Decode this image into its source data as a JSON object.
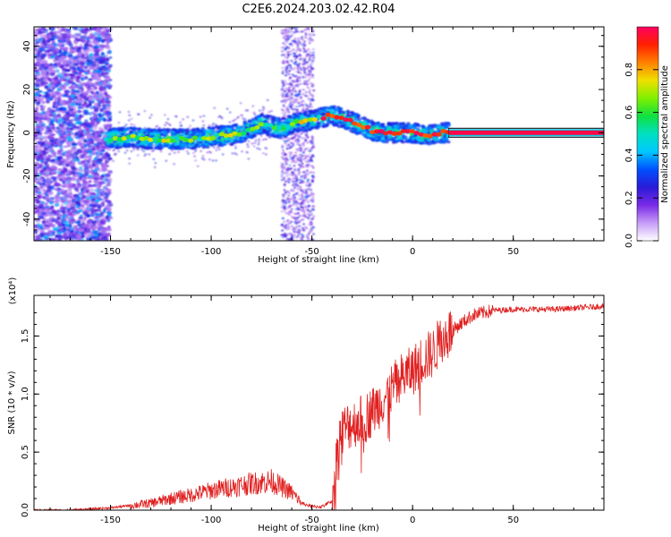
{
  "title": "C2E6.2024.203.02.42.R04",
  "chart_data": [
    {
      "type": "heatmap",
      "xlabel": "Height of straight line (km)",
      "ylabel": "Frequency (Hz)",
      "xlim": [
        -188,
        95
      ],
      "ylim": [
        -50,
        49
      ],
      "x_ticks": [
        -150,
        -100,
        -50,
        0,
        50
      ],
      "y_ticks": [
        -40,
        -20,
        0,
        20,
        40
      ],
      "ridge": {
        "x": [
          -188,
          -160,
          -152,
          -140,
          -130,
          -120,
          -110,
          -100,
          -90,
          -85,
          -80,
          -75,
          -70,
          -65,
          -60,
          -55,
          -50,
          -45,
          -40,
          -35,
          -30,
          -25,
          -20,
          -15,
          -10,
          -5,
          0,
          5,
          10,
          15,
          20,
          40,
          60,
          80,
          95
        ],
        "frequency_hz": [
          0,
          0,
          -3,
          -2,
          -3,
          -3,
          -3,
          -2,
          -1,
          0,
          2,
          4,
          3,
          2,
          4,
          5,
          6,
          7,
          8,
          7,
          5,
          3,
          1,
          0,
          0,
          0,
          0,
          -1,
          -1,
          0,
          0,
          0,
          0,
          0,
          0
        ]
      },
      "colorbar": {
        "label": "Normalized spectral amplitude",
        "range": [
          0.0,
          1.0
        ],
        "ticks": [
          "0.0",
          "0.2",
          "0.4",
          "0.6",
          "0.8"
        ],
        "colors": [
          "#ffffff",
          "#c79cf8",
          "#7a2ae6",
          "#2a1ad6",
          "#0050ff",
          "#00c8ff",
          "#00e0c0",
          "#10e040",
          "#80f000",
          "#f0e000",
          "#ff8000",
          "#ff2000",
          "#ff0060"
        ]
      }
    },
    {
      "type": "line",
      "xlabel": "Height of straight line (km)",
      "ylabel": "SNR (10 * v/v)",
      "y_multiplier": "(x10⁴)",
      "xlim": [
        -188,
        95
      ],
      "ylim": [
        0,
        1.85
      ],
      "x_ticks": [
        -150,
        -100,
        -50,
        0,
        50
      ],
      "y_ticks": [
        "0.0",
        "0.5",
        "1.0",
        "1.5"
      ],
      "color": "#e02020",
      "x": [
        -188,
        -170,
        -160,
        -150,
        -140,
        -130,
        -120,
        -110,
        -100,
        -90,
        -80,
        -75,
        -70,
        -65,
        -60,
        -55,
        -50,
        -45,
        -40,
        -38,
        -36,
        -34,
        -30,
        -25,
        -20,
        -15,
        -10,
        -5,
        0,
        5,
        10,
        15,
        20,
        25,
        30,
        35,
        40,
        50,
        60,
        70,
        80,
        90,
        95
      ],
      "y": [
        0.0,
        0.0,
        0.01,
        0.02,
        0.04,
        0.06,
        0.1,
        0.13,
        0.17,
        0.2,
        0.23,
        0.24,
        0.25,
        0.2,
        0.15,
        0.06,
        0.03,
        0.03,
        0.08,
        0.4,
        0.65,
        0.7,
        0.75,
        0.78,
        0.85,
        0.95,
        1.05,
        1.15,
        1.2,
        1.3,
        1.35,
        1.5,
        1.55,
        1.62,
        1.68,
        1.7,
        1.72,
        1.73,
        1.73,
        1.73,
        1.74,
        1.75,
        1.76
      ]
    }
  ]
}
